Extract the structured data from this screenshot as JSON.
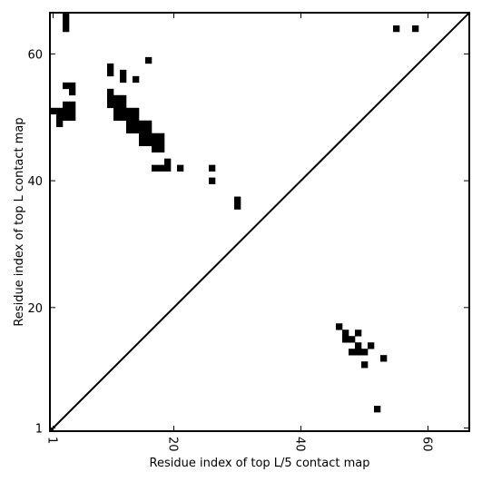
{
  "chart_data": {
    "type": "heatmap",
    "subtype": "contact-map",
    "xlabel": "Residue index of top L/5 contact map",
    "ylabel": "Residue index of top L contact map",
    "xlim": [
      0.5,
      66.5
    ],
    "ylim": [
      0.5,
      66.5
    ],
    "xticks": [
      1,
      20,
      40,
      60
    ],
    "yticks": [
      1,
      20,
      40,
      60
    ],
    "xtick_labels": [
      "1",
      "20",
      "40",
      "60"
    ],
    "ytick_labels": [
      "1",
      "20",
      "40",
      "60"
    ],
    "x_tick_rotation": -90,
    "grid": false,
    "cell_color": "#000000",
    "background_color": "#ffffff",
    "diagonal": {
      "from": [
        0.5,
        0.5
      ],
      "to": [
        66.5,
        66.5
      ],
      "color": "#000000"
    },
    "upper_triangle_contacts": [
      [
        3,
        66
      ],
      [
        3,
        65
      ],
      [
        3,
        64
      ],
      [
        55,
        64
      ],
      [
        58,
        64
      ],
      [
        10,
        58
      ],
      [
        10,
        57
      ],
      [
        16,
        59
      ],
      [
        12,
        57
      ],
      [
        12,
        56
      ],
      [
        14,
        56
      ],
      [
        3,
        55
      ],
      [
        4,
        55
      ],
      [
        4,
        54
      ],
      [
        10,
        54
      ],
      [
        10,
        53
      ],
      [
        11,
        53
      ],
      [
        12,
        53
      ],
      [
        3,
        52
      ],
      [
        4,
        52
      ],
      [
        10,
        52
      ],
      [
        11,
        52
      ],
      [
        12,
        52
      ],
      [
        1,
        51
      ],
      [
        2,
        51
      ],
      [
        3,
        51
      ],
      [
        4,
        51
      ],
      [
        11,
        51
      ],
      [
        12,
        51
      ],
      [
        13,
        51
      ],
      [
        14,
        51
      ],
      [
        2,
        50
      ],
      [
        3,
        50
      ],
      [
        4,
        50
      ],
      [
        11,
        50
      ],
      [
        12,
        50
      ],
      [
        13,
        50
      ],
      [
        14,
        50
      ],
      [
        2,
        49
      ],
      [
        13,
        49
      ],
      [
        14,
        49
      ],
      [
        15,
        49
      ],
      [
        16,
        49
      ],
      [
        13,
        48
      ],
      [
        14,
        48
      ],
      [
        15,
        48
      ],
      [
        16,
        48
      ],
      [
        15,
        47
      ],
      [
        16,
        47
      ],
      [
        17,
        47
      ],
      [
        18,
        47
      ],
      [
        15,
        46
      ],
      [
        16,
        46
      ],
      [
        17,
        46
      ],
      [
        18,
        46
      ],
      [
        17,
        45
      ],
      [
        18,
        45
      ],
      [
        19,
        43
      ],
      [
        17,
        42
      ],
      [
        18,
        42
      ],
      [
        19,
        42
      ],
      [
        21,
        42
      ],
      [
        26,
        42
      ],
      [
        26,
        40
      ],
      [
        30,
        37
      ],
      [
        30,
        36
      ]
    ],
    "lower_triangle_contacts": [
      [
        46,
        17
      ],
      [
        47,
        16
      ],
      [
        49,
        16
      ],
      [
        47,
        15
      ],
      [
        48,
        15
      ],
      [
        49,
        14
      ],
      [
        51,
        14
      ],
      [
        48,
        13
      ],
      [
        49,
        13
      ],
      [
        50,
        13
      ],
      [
        53,
        12
      ],
      [
        50,
        11
      ],
      [
        52,
        4
      ]
    ]
  }
}
